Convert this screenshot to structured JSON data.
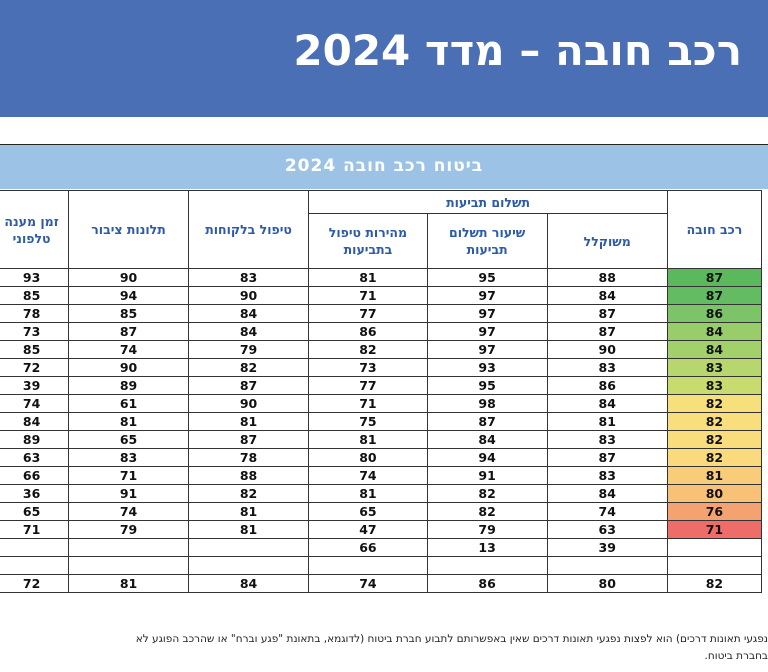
{
  "banner": {
    "title": "רכב חובה – מדד 2024"
  },
  "table": {
    "title": "ביטוח רכב חובה 2024",
    "group_header": "תשלום תביעות",
    "headers": {
      "response_time": "זמן מענה\nטלפוני",
      "public_complaints": "תלונות ציבור",
      "customer_service": "טיפול בלקוחות",
      "claims_speed": "מהירות טיפול\nבתביעות",
      "claims_payment_rate": "שיעור תשלום\nתביעות",
      "weighted": "משוקלל",
      "overall": "רכב חובה"
    },
    "rows": [
      {
        "response_time": "93",
        "public_complaints": "90",
        "customer_service": "83",
        "claims_speed": "81",
        "claims_payment_rate": "95",
        "weighted": "88",
        "overall": "87",
        "color": "#5cb85c"
      },
      {
        "response_time": "85",
        "public_complaints": "94",
        "customer_service": "90",
        "claims_speed": "71",
        "claims_payment_rate": "97",
        "weighted": "84",
        "overall": "87",
        "color": "#63bb62"
      },
      {
        "response_time": "78",
        "public_complaints": "85",
        "customer_service": "84",
        "claims_speed": "77",
        "claims_payment_rate": "97",
        "weighted": "87",
        "overall": "86",
        "color": "#7cc467"
      },
      {
        "response_time": "73",
        "public_complaints": "87",
        "customer_service": "84",
        "claims_speed": "86",
        "claims_payment_rate": "97",
        "weighted": "87",
        "overall": "84",
        "color": "#98cd6a"
      },
      {
        "response_time": "85",
        "public_complaints": "74",
        "customer_service": "79",
        "claims_speed": "82",
        "claims_payment_rate": "97",
        "weighted": "90",
        "overall": "84",
        "color": "#a2d06b"
      },
      {
        "response_time": "72",
        "public_complaints": "90",
        "customer_service": "82",
        "claims_speed": "73",
        "claims_payment_rate": "93",
        "weighted": "83",
        "overall": "83",
        "color": "#b7d66d"
      },
      {
        "response_time": "39",
        "public_complaints": "89",
        "customer_service": "87",
        "claims_speed": "77",
        "claims_payment_rate": "95",
        "weighted": "86",
        "overall": "83",
        "color": "#c8db6f"
      },
      {
        "response_time": "74",
        "public_complaints": "61",
        "customer_service": "90",
        "claims_speed": "71",
        "claims_payment_rate": "98",
        "weighted": "84",
        "overall": "82",
        "color": "#f6e07c"
      },
      {
        "response_time": "84",
        "public_complaints": "81",
        "customer_service": "81",
        "claims_speed": "75",
        "claims_payment_rate": "87",
        "weighted": "81",
        "overall": "82",
        "color": "#f8de7d"
      },
      {
        "response_time": "89",
        "public_complaints": "65",
        "customer_service": "87",
        "claims_speed": "81",
        "claims_payment_rate": "84",
        "weighted": "83",
        "overall": "82",
        "color": "#f9dc7c"
      },
      {
        "response_time": "63",
        "public_complaints": "83",
        "customer_service": "78",
        "claims_speed": "80",
        "claims_payment_rate": "94",
        "weighted": "87",
        "overall": "82",
        "color": "#fada7c"
      },
      {
        "response_time": "66",
        "public_complaints": "71",
        "customer_service": "88",
        "claims_speed": "74",
        "claims_payment_rate": "91",
        "weighted": "83",
        "overall": "81",
        "color": "#f9cc79"
      },
      {
        "response_time": "36",
        "public_complaints": "91",
        "customer_service": "82",
        "claims_speed": "81",
        "claims_payment_rate": "82",
        "weighted": "84",
        "overall": "80",
        "color": "#f8c178"
      },
      {
        "response_time": "65",
        "public_complaints": "74",
        "customer_service": "81",
        "claims_speed": "65",
        "claims_payment_rate": "82",
        "weighted": "74",
        "overall": "76",
        "color": "#f4a26f"
      },
      {
        "response_time": "71",
        "public_complaints": "79",
        "customer_service": "81",
        "claims_speed": "47",
        "claims_payment_rate": "79",
        "weighted": "63",
        "overall": "71",
        "color": "#ee6d68"
      },
      {
        "response_time": "",
        "public_complaints": "",
        "customer_service": "",
        "claims_speed": "66",
        "claims_payment_rate": "13",
        "weighted": "39",
        "overall": "",
        "color": "#ffffff"
      }
    ],
    "average": {
      "response_time": "72",
      "public_complaints": "81",
      "customer_service": "84",
      "claims_speed": "74",
      "claims_payment_rate": "86",
      "weighted": "80",
      "overall": "82"
    }
  },
  "footer": {
    "line1": "נפגעי תאונות דרכים) הוא לפצות נפגעי תאונות דרכים שאין באפשרותם לתבוע חברת ביטוח (לדוגמא, בתאונת \"פגע וברח\" או שהרכב הפוגע לא",
    "line2": "בחברת ביטוח."
  }
}
